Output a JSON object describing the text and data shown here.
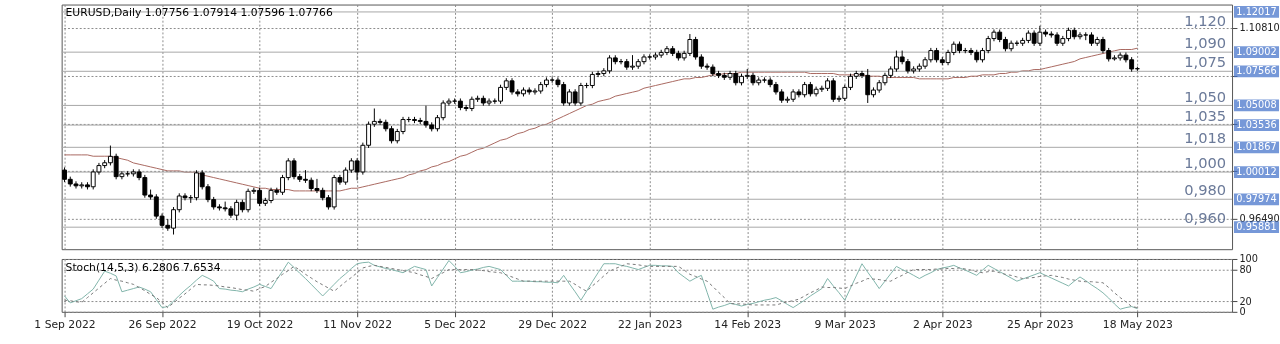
{
  "chart_data": [
    {
      "type": "candlestick",
      "title": "EURUSD,Daily 1.07756 1.07914 1.07596 1.07766",
      "categories": [
        null,
        null,
        null,
        null,
        null,
        null,
        null,
        null,
        null,
        null,
        null,
        null,
        null,
        null,
        null,
        null,
        null,
        null,
        null,
        null,
        null,
        null,
        null,
        null,
        null,
        null,
        null,
        null,
        null,
        null,
        null,
        null,
        null,
        null,
        null,
        null,
        null,
        null,
        null,
        null,
        null,
        null,
        null,
        null,
        null,
        null,
        null,
        null,
        null,
        null,
        null,
        null,
        null,
        null,
        null,
        null,
        null,
        null,
        null,
        null,
        null,
        null,
        null,
        null,
        null,
        null,
        null,
        null,
        null,
        null,
        null,
        null,
        null,
        null,
        null,
        null,
        null,
        null,
        null,
        null,
        null,
        null,
        null,
        null,
        null,
        null,
        null,
        null,
        null,
        null,
        null,
        null,
        null,
        null,
        null,
        null,
        null,
        null,
        null,
        null,
        null,
        null,
        null,
        null,
        null,
        null,
        null,
        null,
        null,
        null,
        null,
        null,
        null,
        null,
        null,
        null,
        null,
        null,
        null,
        null,
        null,
        null,
        null,
        null,
        null,
        null,
        null,
        null,
        null,
        null,
        null,
        null,
        null,
        null,
        null,
        null,
        null,
        null,
        null,
        null,
        null,
        null,
        null,
        null,
        null,
        null,
        null,
        null,
        null,
        null,
        null,
        null,
        null,
        null,
        null,
        null,
        null,
        null,
        null,
        null,
        null,
        null,
        null,
        null,
        null,
        null,
        null,
        null,
        null,
        null,
        null,
        null,
        null,
        null,
        null,
        null,
        null,
        null,
        null,
        null,
        null,
        null,
        null,
        null,
        null,
        null,
        null,
        null,
        null,
        null,
        null,
        null,
        null,
        null,
        null,
        null,
        null,
        null,
        null,
        null,
        null,
        null,
        null,
        null
      ],
      "ohlc": [
        [
          1.0016,
          1.0036,
          0.9927,
          0.9947
        ],
        [
          0.9947,
          0.9967,
          0.9892,
          0.9912
        ],
        [
          0.9912,
          0.9932,
          0.9878,
          0.9898
        ],
        [
          0.9898,
          0.9925,
          0.9878,
          0.9905
        ],
        [
          0.9905,
          0.9925,
          0.9871,
          0.9891
        ],
        [
          0.9891,
          1.0022,
          0.9871,
          1.0002
        ],
        [
          1.0002,
          1.007,
          0.9982,
          1.005
        ],
        [
          1.005,
          1.0091,
          1.003,
          1.0071
        ],
        [
          1.0071,
          1.02,
          1.0051,
          1.0119
        ],
        [
          1.0119,
          1.0139,
          0.9947,
          0.9967
        ],
        [
          0.9967,
          1.0008,
          0.9947,
          0.9988
        ],
        [
          0.9988,
          1.0008,
          0.9968,
          0.9988
        ],
        [
          0.9988,
          1.0022,
          0.9968,
          1.0002
        ],
        [
          1.0002,
          1.0022,
          0.994,
          0.996
        ],
        [
          0.996,
          0.998,
          0.9809,
          0.9829
        ],
        [
          0.9829,
          0.987,
          0.9795,
          0.9815
        ],
        [
          0.9815,
          0.9835,
          0.9651,
          0.9671
        ],
        [
          0.9671,
          0.9691,
          0.9582,
          0.9602
        ],
        [
          0.9602,
          0.965,
          0.9561,
          0.9581
        ],
        [
          0.9581,
          0.9739,
          0.9533,
          0.9719
        ],
        [
          0.9719,
          0.9842,
          0.9699,
          0.9822
        ],
        [
          0.9822,
          0.9842,
          0.9789,
          0.9809
        ],
        [
          0.9809,
          0.9829,
          0.977,
          0.9809
        ],
        [
          0.9809,
          1.0015,
          0.9789,
          0.9995
        ],
        [
          0.9995,
          1.0015,
          0.9871,
          0.9891
        ],
        [
          0.9891,
          0.9911,
          0.9775,
          0.9795
        ],
        [
          0.9795,
          0.9815,
          0.972,
          0.974
        ],
        [
          0.974,
          0.976,
          0.9713,
          0.9733
        ],
        [
          0.9733,
          0.978,
          0.9706,
          0.9726
        ],
        [
          0.9726,
          0.9746,
          0.9658,
          0.9678
        ],
        [
          0.9678,
          0.9794,
          0.964,
          0.9774
        ],
        [
          0.9774,
          0.9794,
          0.9699,
          0.9719
        ],
        [
          0.9719,
          0.9877,
          0.9699,
          0.9857
        ],
        [
          0.9857,
          0.9884,
          0.9837,
          0.9864
        ],
        [
          0.9864,
          0.9884,
          0.9747,
          0.9767
        ],
        [
          0.9767,
          0.9808,
          0.9747,
          0.9788
        ],
        [
          0.9788,
          0.9884,
          0.9768,
          0.9864
        ],
        [
          0.9864,
          0.9884,
          0.983,
          0.985
        ],
        [
          0.985,
          0.998,
          0.983,
          0.996
        ],
        [
          0.996,
          1.0105,
          0.994,
          1.0085
        ],
        [
          1.0085,
          1.0105,
          0.9947,
          0.9967
        ],
        [
          0.9967,
          0.9987,
          0.9927,
          0.9947
        ],
        [
          0.9947,
          1.0016,
          0.992,
          0.994
        ],
        [
          0.994,
          0.996,
          0.9858,
          0.9878
        ],
        [
          0.9878,
          0.995,
          0.9844,
          0.9864
        ],
        [
          0.9864,
          0.9884,
          0.9789,
          0.9809
        ],
        [
          0.9809,
          0.9829,
          0.972,
          0.974
        ],
        [
          0.974,
          0.998,
          0.972,
          0.996
        ],
        [
          0.996,
          0.998,
          0.9906,
          0.9926
        ],
        [
          0.9926,
          1.0036,
          0.9906,
          1.0016
        ],
        [
          1.0016,
          1.0105,
          0.9996,
          1.0085
        ],
        [
          1.0085,
          1.0105,
          0.994,
          1.0002
        ],
        [
          1.0002,
          1.0222,
          0.9982,
          1.0202
        ],
        [
          1.0202,
          1.038,
          1.0182,
          1.036
        ],
        [
          1.036,
          1.0478,
          1.034,
          1.0381
        ],
        [
          1.0381,
          1.0401,
          1.0354,
          1.0374
        ],
        [
          1.0374,
          1.0394,
          1.0306,
          1.0326
        ],
        [
          1.0326,
          1.0346,
          1.0216,
          1.0236
        ],
        [
          1.0236,
          1.0325,
          1.0216,
          1.0305
        ],
        [
          1.0305,
          1.0415,
          1.0285,
          1.0395
        ],
        [
          1.0395,
          1.0415,
          1.0375,
          1.0395
        ],
        [
          1.0395,
          1.0415,
          1.0368,
          1.0388
        ],
        [
          1.0388,
          1.0408,
          1.0361,
          1.0381
        ],
        [
          1.0381,
          1.0499,
          1.0334,
          1.0354
        ],
        [
          1.0354,
          1.0374,
          1.0306,
          1.0326
        ],
        [
          1.0326,
          1.0429,
          1.0306,
          1.0409
        ],
        [
          1.0409,
          1.0539,
          1.0389,
          1.0519
        ],
        [
          1.0519,
          1.0553,
          1.0499,
          1.0533
        ],
        [
          1.0533,
          1.0553,
          1.0513,
          1.0533
        ],
        [
          1.0533,
          1.0553,
          1.0465,
          1.0485
        ],
        [
          1.0485,
          1.0505,
          1.0458,
          1.0478
        ],
        [
          1.0478,
          1.0567,
          1.0458,
          1.0547
        ],
        [
          1.0547,
          1.0574,
          1.0527,
          1.0554
        ],
        [
          1.0554,
          1.0574,
          1.0499,
          1.0519
        ],
        [
          1.0519,
          1.0553,
          1.0499,
          1.0533
        ],
        [
          1.0533,
          1.0553,
          1.0513,
          1.0533
        ],
        [
          1.0533,
          1.0656,
          1.0513,
          1.0636
        ],
        [
          1.0636,
          1.0705,
          1.0616,
          1.0685
        ],
        [
          1.0685,
          1.0705,
          1.0582,
          1.0602
        ],
        [
          1.0602,
          1.0622,
          1.0568,
          1.0588
        ],
        [
          1.0588,
          1.0636,
          1.0568,
          1.0616
        ],
        [
          1.0616,
          1.0636,
          1.0582,
          1.0602
        ],
        [
          1.0602,
          1.0629,
          1.0582,
          1.0609
        ],
        [
          1.0609,
          1.0677,
          1.0589,
          1.0657
        ],
        [
          1.0657,
          1.0711,
          1.0637,
          1.0691
        ],
        [
          1.0691,
          1.0711,
          1.0671,
          1.0691
        ],
        [
          1.0691,
          1.0711,
          1.0637,
          1.0657
        ],
        [
          1.0657,
          1.0677,
          1.0499,
          1.0519
        ],
        [
          1.0519,
          1.0622,
          1.0499,
          1.0602
        ],
        [
          1.0602,
          1.0622,
          1.0499,
          1.0519
        ],
        [
          1.0519,
          1.067,
          1.0499,
          1.065
        ],
        [
          1.065,
          1.067,
          1.063,
          1.065
        ],
        [
          1.065,
          1.0753,
          1.063,
          1.0733
        ],
        [
          1.0733,
          1.076,
          1.0713,
          1.074
        ],
        [
          1.074,
          1.078,
          1.072,
          1.076
        ],
        [
          1.076,
          1.0877,
          1.074,
          1.0857
        ],
        [
          1.0857,
          1.0877,
          1.0809,
          1.0829
        ],
        [
          1.0829,
          1.0849,
          1.0809,
          1.0829
        ],
        [
          1.0829,
          1.0849,
          1.0768,
          1.0788
        ],
        [
          1.0788,
          1.0878,
          1.0768,
          1.0795
        ],
        [
          1.0795,
          1.0849,
          1.0775,
          1.0829
        ],
        [
          1.0829,
          1.0884,
          1.0809,
          1.0864
        ],
        [
          1.0864,
          1.0884,
          1.0844,
          1.0864
        ],
        [
          1.0864,
          1.0898,
          1.0844,
          1.0878
        ],
        [
          1.0878,
          1.0918,
          1.0858,
          1.0898
        ],
        [
          1.0898,
          1.0946,
          1.0878,
          1.0926
        ],
        [
          1.0926,
          1.0946,
          1.0871,
          1.0891
        ],
        [
          1.0891,
          1.0911,
          1.0837,
          1.0857
        ],
        [
          1.0857,
          1.0911,
          1.0837,
          1.0891
        ],
        [
          1.0891,
          1.1036,
          1.0871,
          1.0995
        ],
        [
          1.0995,
          1.1015,
          1.0844,
          1.0864
        ],
        [
          1.0864,
          1.0884,
          1.0775,
          1.0795
        ],
        [
          1.0795,
          1.0815,
          1.0768,
          1.0788
        ],
        [
          1.0788,
          1.0808,
          1.072,
          1.074
        ],
        [
          1.074,
          1.076,
          1.0706,
          1.0726
        ],
        [
          1.0726,
          1.0746,
          1.0692,
          1.0712
        ],
        [
          1.0712,
          1.076,
          1.0692,
          1.074
        ],
        [
          1.074,
          1.076,
          1.0651,
          1.0671
        ],
        [
          1.0671,
          1.0739,
          1.0651,
          1.0719
        ],
        [
          1.0719,
          1.0774,
          1.0699,
          1.0726
        ],
        [
          1.0726,
          1.0746,
          1.0651,
          1.0671
        ],
        [
          1.0671,
          1.0711,
          1.0651,
          1.0691
        ],
        [
          1.0691,
          1.0711,
          1.0671,
          1.0691
        ],
        [
          1.0691,
          1.0711,
          1.0637,
          1.0657
        ],
        [
          1.0657,
          1.0677,
          1.0582,
          1.0602
        ],
        [
          1.0602,
          1.0622,
          1.052,
          1.054
        ],
        [
          1.054,
          1.0567,
          1.052,
          1.0547
        ],
        [
          1.0547,
          1.0622,
          1.0527,
          1.0602
        ],
        [
          1.0602,
          1.0622,
          1.0561,
          1.0581
        ],
        [
          1.0581,
          1.0677,
          1.0561,
          1.0657
        ],
        [
          1.0657,
          1.0677,
          1.0568,
          1.0588
        ],
        [
          1.0588,
          1.0642,
          1.0568,
          1.0622
        ],
        [
          1.0622,
          1.0649,
          1.0602,
          1.0629
        ],
        [
          1.0629,
          1.0705,
          1.0609,
          1.0685
        ],
        [
          1.0685,
          1.0705,
          1.0527,
          1.0547
        ],
        [
          1.0547,
          1.0574,
          1.0527,
          1.0554
        ],
        [
          1.0554,
          1.0656,
          1.0534,
          1.0636
        ],
        [
          1.0636,
          1.0739,
          1.0616,
          1.0719
        ],
        [
          1.0719,
          1.076,
          1.0699,
          1.074
        ],
        [
          1.074,
          1.076,
          1.0706,
          1.0726
        ],
        [
          1.0726,
          1.0774,
          1.0519,
          1.0581
        ],
        [
          1.0581,
          1.0636,
          1.0561,
          1.0616
        ],
        [
          1.0616,
          1.0691,
          1.0596,
          1.0671
        ],
        [
          1.0671,
          1.0746,
          1.0651,
          1.0726
        ],
        [
          1.0726,
          1.0794,
          1.0706,
          1.0774
        ],
        [
          1.0774,
          1.0912,
          1.0754,
          1.0864
        ],
        [
          1.0864,
          1.0912,
          1.0809,
          1.0829
        ],
        [
          1.0829,
          1.0849,
          1.074,
          1.076
        ],
        [
          1.076,
          1.0794,
          1.074,
          1.0774
        ],
        [
          1.0774,
          1.0815,
          1.0754,
          1.0795
        ],
        [
          1.0795,
          1.0863,
          1.0775,
          1.0843
        ],
        [
          1.0843,
          1.0932,
          1.0823,
          1.0912
        ],
        [
          1.0912,
          1.0932,
          1.0823,
          1.0843
        ],
        [
          1.0843,
          1.0863,
          1.0802,
          1.0822
        ],
        [
          1.0822,
          1.0918,
          1.0802,
          1.0898
        ],
        [
          1.0898,
          1.098,
          1.0878,
          1.096
        ],
        [
          1.096,
          1.098,
          1.0892,
          1.0912
        ],
        [
          1.0912,
          1.0932,
          1.0892,
          1.0912
        ],
        [
          1.0912,
          1.0932,
          1.0878,
          1.0898
        ],
        [
          1.0898,
          1.0918,
          1.0823,
          1.0843
        ],
        [
          1.0843,
          1.0932,
          1.0823,
          1.0912
        ],
        [
          1.0912,
          1.1022,
          1.0892,
          1.1002
        ],
        [
          1.1002,
          1.107,
          1.0982,
          1.105
        ],
        [
          1.105,
          1.107,
          1.0975,
          1.0995
        ],
        [
          1.0995,
          1.1015,
          1.0906,
          1.0926
        ],
        [
          1.0926,
          1.0987,
          1.0906,
          1.0967
        ],
        [
          1.0967,
          1.0987,
          1.0947,
          1.0967
        ],
        [
          1.0967,
          1.1008,
          1.0947,
          1.0988
        ],
        [
          1.0988,
          1.1063,
          1.0968,
          1.1043
        ],
        [
          1.1043,
          1.1063,
          1.0947,
          1.0967
        ],
        [
          1.0967,
          1.1098,
          1.0947,
          1.105
        ],
        [
          1.105,
          1.107,
          1.1016,
          1.1036
        ],
        [
          1.1036,
          1.1056,
          1.1009,
          1.1029
        ],
        [
          1.1029,
          1.1049,
          1.0947,
          1.0967
        ],
        [
          1.0967,
          1.1022,
          1.0947,
          1.1002
        ],
        [
          1.1002,
          1.1084,
          1.0982,
          1.1064
        ],
        [
          1.1064,
          1.1084,
          1.0996,
          1.1016
        ],
        [
          1.1016,
          1.1049,
          1.0996,
          1.1029
        ],
        [
          1.1029,
          1.1049,
          1.099,
          1.1029
        ],
        [
          1.1029,
          1.1049,
          1.0947,
          1.0967
        ],
        [
          1.0967,
          1.1015,
          1.0947,
          1.0995
        ],
        [
          1.0995,
          1.1015,
          1.0892,
          1.0912
        ],
        [
          1.0912,
          1.0932,
          1.083,
          1.085
        ],
        [
          1.085,
          1.0877,
          1.0837,
          1.0857
        ],
        [
          1.0857,
          1.0898,
          1.0837,
          1.0878
        ],
        [
          1.0878,
          1.0898,
          1.0823,
          1.0843
        ],
        [
          1.0843,
          1.0863,
          1.0754,
          1.0774
        ],
        [
          1.07756,
          1.07914,
          1.07596,
          1.07766
        ],
        null,
        null,
        null,
        null,
        null,
        null,
        null,
        null,
        null,
        null,
        null,
        null,
        null,
        null,
        null,
        null
      ],
      "series": [
        {
          "type": "line",
          "color": "#a8665e",
          "values": [
            1.013,
            1.013,
            1.013,
            1.013,
            1.013,
            1.012,
            1.012,
            1.012,
            1.012,
            1.011,
            1.01,
            1.009,
            1.007,
            1.006,
            1.005,
            1.004,
            1.003,
            1.002,
            1.001,
            1.001,
            1.001,
            1.0,
            1.0,
            1.0,
            0.998,
            0.997,
            0.996,
            0.995,
            0.994,
            0.993,
            0.992,
            0.991,
            0.99,
            0.989,
            0.988,
            0.988,
            0.987,
            0.987,
            0.987,
            0.987,
            0.986,
            0.986,
            0.986,
            0.986,
            0.986,
            0.986,
            0.986,
            0.986,
            0.986,
            0.987,
            0.988,
            0.988,
            0.989,
            0.99,
            0.991,
            0.992,
            0.993,
            0.994,
            0.995,
            0.996,
            0.998,
            0.999,
            1.001,
            1.002,
            1.004,
            1.005,
            1.007,
            1.008,
            1.01,
            1.012,
            1.013,
            1.015,
            1.017,
            1.018,
            1.02,
            1.022,
            1.024,
            1.025,
            1.027,
            1.029,
            1.03,
            1.032,
            1.033,
            1.035,
            1.036,
            1.038,
            1.04,
            1.042,
            1.044,
            1.046,
            1.048,
            1.05,
            1.051,
            1.053,
            1.054,
            1.055,
            1.057,
            1.058,
            1.059,
            1.06,
            1.061,
            1.063,
            1.064,
            1.065,
            1.066,
            1.067,
            1.068,
            1.069,
            1.07,
            1.07,
            1.071,
            1.071,
            1.072,
            1.073,
            1.073,
            1.074,
            1.074,
            1.074,
            1.075,
            1.075,
            1.075,
            1.075,
            1.075,
            1.075,
            1.075,
            1.075,
            1.075,
            1.075,
            1.075,
            1.075,
            1.074,
            1.074,
            1.074,
            1.074,
            1.074,
            1.073,
            1.073,
            1.073,
            1.073,
            1.073,
            1.072,
            1.072,
            1.072,
            1.071,
            1.071,
            1.071,
            1.071,
            1.071,
            1.071,
            1.07,
            1.07,
            1.07,
            1.07,
            1.07,
            1.07,
            1.071,
            1.071,
            1.071,
            1.072,
            1.072,
            1.073,
            1.073,
            1.073,
            1.074,
            1.074,
            1.075,
            1.075,
            1.076,
            1.076,
            1.077,
            1.077,
            1.078,
            1.079,
            1.08,
            1.081,
            1.082,
            1.083,
            1.085,
            1.086,
            1.087,
            1.088,
            1.089,
            1.09,
            1.091,
            1.092,
            1.092,
            1.092,
            1.093,
            null,
            null,
            null,
            null,
            null,
            null,
            null,
            null,
            null,
            null,
            null,
            null,
            null,
            null,
            null,
            null
          ]
        }
      ],
      "ylim": [
        0.9423,
        1.1257
      ],
      "yticks": [
        {
          "value": 1.1081,
          "label": "1.10810"
        },
        {
          "value": 1.0723,
          "label": null
        },
        {
          "value": 1.0365,
          "label": null
        },
        {
          "value": 1.0007,
          "label": null
        },
        {
          "value": 0.9649,
          "label": "0.96490"
        }
      ],
      "tick_labels": "y",
      "grid": true,
      "ref_lines": [
        {
          "axis": "y",
          "value": 1.12017,
          "label": "1.12017",
          "color": "#a6a6a6"
        },
        {
          "axis": "y",
          "value": 1.09002,
          "label": "1.09002",
          "color": "#a6a6a6"
        },
        {
          "axis": "y",
          "value": 1.07566,
          "label": "1.07566",
          "color": "#a6a6a6"
        },
        {
          "axis": "y",
          "value": 1.05008,
          "label": "1.05008",
          "color": "#a6a6a6"
        },
        {
          "axis": "y",
          "value": 1.03536,
          "label": "1.03536",
          "color": "#a6a6a6"
        },
        {
          "axis": "y",
          "value": 1.01867,
          "label": "1.01867",
          "color": "#a6a6a6"
        },
        {
          "axis": "y",
          "value": 1.00012,
          "label": "1.00012",
          "color": "#a6a6a6"
        },
        {
          "axis": "y",
          "value": 0.97974,
          "label": "0.97974",
          "color": "#a6a6a6"
        },
        {
          "axis": "y",
          "value": 0.95881,
          "label": "0.95881",
          "color": "#a6a6a6"
        }
      ],
      "annotations": [
        "1,120",
        "1,090",
        "1,075",
        "1,050",
        "1,035",
        "1,018",
        "1,000",
        "0,980",
        "0,960"
      ]
    },
    {
      "type": "line",
      "title": "Stoch(14,5,3) 6.2806 7.6534",
      "categories": [
        "1 Sep 2022",
        null,
        null,
        null,
        null,
        null,
        null,
        null,
        null,
        null,
        null,
        null,
        null,
        null,
        null,
        null,
        null,
        "26 Sep 2022",
        null,
        null,
        null,
        null,
        null,
        null,
        null,
        null,
        null,
        null,
        null,
        null,
        null,
        null,
        null,
        null,
        "19 Oct 2022",
        null,
        null,
        null,
        null,
        null,
        null,
        null,
        null,
        null,
        null,
        null,
        null,
        null,
        null,
        null,
        null,
        "11 Nov 2022",
        null,
        null,
        null,
        null,
        null,
        null,
        null,
        null,
        null,
        null,
        null,
        null,
        null,
        null,
        null,
        null,
        "5 Dec 2022",
        null,
        null,
        null,
        null,
        null,
        null,
        null,
        null,
        null,
        null,
        null,
        null,
        null,
        null,
        null,
        null,
        "29 Dec 2022",
        null,
        null,
        null,
        null,
        null,
        null,
        null,
        null,
        null,
        null,
        null,
        null,
        null,
        null,
        null,
        null,
        "22 Jan 2023",
        null,
        null,
        null,
        null,
        null,
        null,
        null,
        null,
        null,
        null,
        null,
        null,
        null,
        null,
        null,
        null,
        "14 Feb 2023",
        null,
        null,
        null,
        null,
        null,
        null,
        null,
        null,
        null,
        null,
        null,
        null,
        null,
        null,
        null,
        null,
        "9 Mar 2023",
        null,
        null,
        null,
        null,
        null,
        null,
        null,
        null,
        null,
        null,
        null,
        null,
        null,
        null,
        null,
        null,
        "2 Apr 2023",
        null,
        null,
        null,
        null,
        null,
        null,
        null,
        null,
        null,
        null,
        null,
        null,
        null,
        null,
        null,
        null,
        "25 Apr 2023",
        null,
        null,
        null,
        null,
        null,
        null,
        null,
        null,
        null,
        null,
        null,
        null,
        null,
        null,
        null,
        null,
        "18 May 2023",
        null,
        null,
        null,
        null,
        null,
        null,
        null,
        null,
        null,
        null,
        null,
        null,
        null,
        null,
        null,
        null
      ],
      "series": [
        {
          "color": "#7fb3a9",
          "line_style": "solid",
          "values": [
            30,
            17,
            21,
            25,
            34,
            43,
            60,
            77,
            73,
            68,
            38,
            41,
            44,
            47,
            43,
            38,
            23,
            8,
            10,
            20,
            31,
            41,
            50,
            60,
            69,
            64,
            58,
            44,
            43,
            41,
            40,
            38,
            43,
            47,
            52,
            48,
            44,
            61,
            77,
            94,
            84,
            73,
            63,
            52,
            41,
            30,
            41,
            52,
            63,
            72,
            82,
            91,
            93,
            94,
            88,
            85,
            82,
            80,
            77,
            74,
            80,
            86,
            83,
            80,
            49,
            65,
            81,
            97,
            86,
            74,
            76,
            79,
            81,
            84,
            86,
            83,
            80,
            69,
            58,
            58,
            58,
            58,
            57,
            57,
            56,
            56,
            55,
            69,
            53,
            38,
            22,
            39,
            57,
            74,
            91,
            91,
            91,
            88,
            86,
            83,
            80,
            84,
            88,
            88,
            87,
            87,
            86,
            74,
            66,
            58,
            64,
            69,
            37,
            5,
            9,
            12,
            16,
            14,
            11,
            14,
            16,
            19,
            22,
            24,
            27,
            21,
            14,
            8,
            15,
            22,
            30,
            37,
            44,
            63,
            49,
            36,
            22,
            45,
            68,
            91,
            75,
            60,
            44,
            58,
            72,
            86,
            80,
            75,
            69,
            63,
            69,
            74,
            80,
            83,
            85,
            88,
            83,
            79,
            74,
            69,
            79,
            88,
            82,
            76,
            70,
            64,
            58,
            62,
            66,
            70,
            74,
            69,
            64,
            59,
            54,
            49,
            58,
            66,
            59,
            51,
            44,
            36,
            26,
            15,
            5,
            8,
            10,
            6,
            null,
            null,
            null,
            null,
            null,
            null,
            null,
            null,
            null,
            null,
            null,
            null,
            null,
            null,
            null,
            null
          ]
        },
        {
          "color": "#777777",
          "line_style": "dashed",
          "values": [
            22,
            21,
            19,
            18,
            27,
            36,
            45,
            54,
            63,
            60,
            58,
            55,
            52,
            46,
            40,
            33,
            27,
            18,
            8,
            17,
            26,
            34,
            43,
            52,
            51,
            51,
            50,
            49,
            47,
            46,
            44,
            42,
            41,
            39,
            44,
            48,
            56,
            63,
            71,
            78,
            86,
            79,
            71,
            64,
            57,
            51,
            45,
            39,
            48,
            57,
            65,
            74,
            83,
            86,
            88,
            86,
            84,
            82,
            80,
            78,
            76,
            74,
            70,
            67,
            63,
            69,
            74,
            80,
            80,
            80,
            80,
            80,
            79,
            78,
            76,
            75,
            74,
            70,
            66,
            62,
            58,
            58,
            58,
            58,
            58,
            58,
            58,
            58,
            58,
            52,
            45,
            39,
            49,
            58,
            68,
            77,
            82,
            86,
            91,
            90,
            89,
            87,
            86,
            86,
            86,
            86,
            86,
            86,
            79,
            71,
            67,
            62,
            58,
            48,
            37,
            27,
            16,
            15,
            15,
            14,
            13,
            13,
            13,
            13,
            13,
            16,
            19,
            21,
            24,
            30,
            36,
            41,
            47,
            46,
            46,
            45,
            44,
            49,
            54,
            58,
            63,
            62,
            61,
            59,
            58,
            64,
            69,
            75,
            80,
            80,
            80,
            80,
            81,
            81,
            82,
            82,
            83,
            81,
            79,
            76,
            74,
            76,
            77,
            74,
            71,
            69,
            66,
            63,
            64,
            65,
            67,
            68,
            69,
            67,
            65,
            62,
            60,
            58,
            57,
            57,
            56,
            55,
            46,
            36,
            27,
            19,
            10,
            8,
            null,
            null,
            null,
            null,
            null,
            null,
            null,
            null,
            null,
            null,
            null,
            null,
            null,
            null,
            null,
            null
          ]
        }
      ],
      "ylim": [
        0,
        100
      ],
      "yticks": [
        0,
        20,
        80,
        100
      ],
      "grid": true
    }
  ]
}
